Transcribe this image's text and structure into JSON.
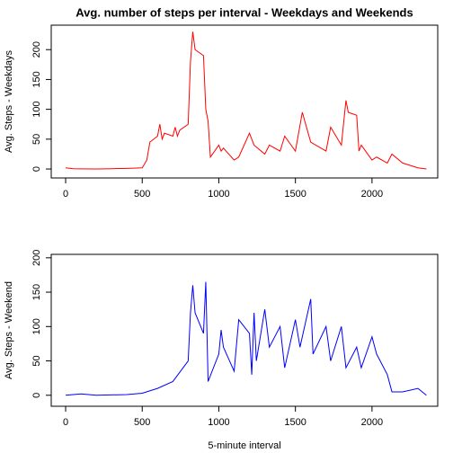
{
  "chart_data": [
    {
      "type": "line",
      "title": "Avg. number of steps per interval - Weekdays and Weekends",
      "y_label": "Avg. Steps - Weekdays",
      "xlim": [
        -94,
        2429
      ],
      "xticks": [
        0,
        500,
        1000,
        1500,
        2000
      ],
      "ylim": [
        -15,
        241
      ],
      "yticks": [
        0,
        50,
        100,
        150,
        200
      ],
      "series": [
        {
          "name": "Weekdays",
          "color": "#ff0000",
          "x": [
            0,
            50,
            100,
            200,
            300,
            400,
            500,
            530,
            550,
            600,
            615,
            630,
            645,
            700,
            715,
            730,
            745,
            800,
            815,
            830,
            845,
            900,
            915,
            930,
            945,
            1000,
            1015,
            1030,
            1100,
            1130,
            1200,
            1215,
            1230,
            1300,
            1330,
            1400,
            1430,
            1500,
            1545,
            1600,
            1700,
            1730,
            1800,
            1830,
            1845,
            1900,
            1915,
            1930,
            2000,
            2030,
            2100,
            2130,
            2200,
            2300,
            2355
          ],
          "values": [
            2,
            0.5,
            0.3,
            0,
            0.5,
            1,
            2,
            15,
            45,
            55,
            75,
            50,
            60,
            55,
            70,
            55,
            65,
            75,
            180,
            230,
            200,
            190,
            100,
            80,
            20,
            40,
            30,
            35,
            15,
            20,
            60,
            50,
            40,
            25,
            40,
            30,
            55,
            30,
            95,
            45,
            30,
            70,
            40,
            115,
            95,
            90,
            30,
            40,
            15,
            20,
            10,
            25,
            10,
            2,
            0
          ]
        }
      ]
    },
    {
      "type": "line",
      "x_label": "5-minute interval",
      "y_label": "Avg. Steps - Weekend",
      "xlim": [
        -94,
        2429
      ],
      "xticks": [
        0,
        500,
        1000,
        1500,
        2000
      ],
      "ylim": [
        -16,
        205
      ],
      "yticks": [
        0,
        50,
        100,
        150,
        200
      ],
      "series": [
        {
          "name": "Weekend",
          "color": "#0000ff",
          "x": [
            0,
            100,
            200,
            400,
            500,
            600,
            700,
            800,
            815,
            830,
            845,
            900,
            915,
            930,
            1000,
            1015,
            1030,
            1100,
            1130,
            1200,
            1215,
            1230,
            1245,
            1300,
            1330,
            1400,
            1430,
            1500,
            1530,
            1600,
            1615,
            1700,
            1730,
            1800,
            1830,
            1900,
            1930,
            2000,
            2030,
            2100,
            2130,
            2200,
            2300,
            2355
          ],
          "values": [
            0,
            2,
            0,
            1,
            3,
            10,
            20,
            50,
            120,
            160,
            120,
            90,
            165,
            20,
            60,
            95,
            70,
            35,
            110,
            90,
            30,
            120,
            50,
            125,
            70,
            100,
            40,
            110,
            70,
            140,
            60,
            100,
            50,
            100,
            40,
            70,
            40,
            85,
            60,
            30,
            5,
            5,
            10,
            0
          ]
        }
      ]
    }
  ]
}
